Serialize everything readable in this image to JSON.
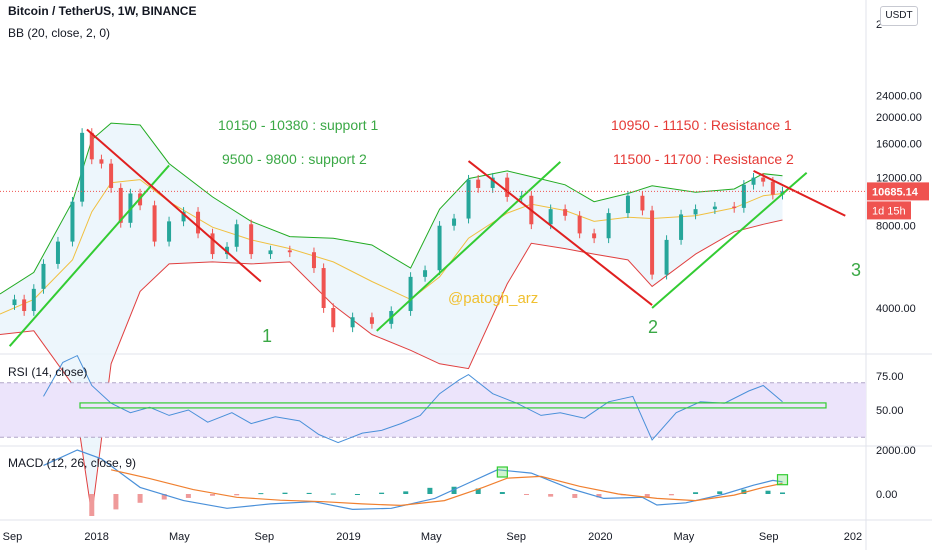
{
  "header": {
    "title": "Bitcoin / TetherUS, 1W, BINANCE",
    "indicator": "BB (20, close, 2, 0)",
    "currency_button": "USDT"
  },
  "colors": {
    "up": "#26a69a",
    "down": "#ef5350",
    "bb_upper": "#22ab22",
    "bb_lower": "#e04040",
    "bb_basis": "#f0c040",
    "bb_fill": "#e8f4fb",
    "trend_green": "#33cc33",
    "trend_red": "#e02020",
    "rsi_line": "#4a90d9",
    "rsi_band": "#ece4fb",
    "macd_line": "#4a90d9",
    "signal_line": "#f08030",
    "price_label": "#ef5350",
    "text_green": "#3aa845",
    "text_red": "#e53935"
  },
  "annotations": {
    "support_1": "10150 - 10380 : support 1",
    "support_2": "9500 - 9800   : support 2",
    "resistance_1": "10950 - 11150 : Resistance 1",
    "resistance_2": "11500 - 11700 : Resistance 2",
    "watermark": "@patogh_arz",
    "wave_1": "1",
    "wave_2": "2",
    "wave_3": "3"
  },
  "price_labels": {
    "current_price": "10685.14",
    "countdown": "1d 15h"
  },
  "chart_data": [
    {
      "type": "line",
      "title": "Bitcoin / TetherUS, 1W, BINANCE",
      "y_scale": "log",
      "y_tick_labels": [
        "4000.00",
        "8000.00",
        "12000.00",
        "16000.00",
        "20000.00",
        "24000.00"
      ],
      "y_top_partial_label": "2",
      "x_tick_labels": [
        "Sep",
        "2018",
        "May",
        "Sep",
        "2019",
        "May",
        "Sep",
        "2020",
        "May",
        "Sep",
        "202"
      ],
      "x_tick_dates": [
        "2017-09-01",
        "2018-01-01",
        "2018-05-01",
        "2018-09-01",
        "2019-01-01",
        "2019-05-01",
        "2019-09-01",
        "2020-01-01",
        "2020-05-01",
        "2020-09-01",
        "2021-01-01"
      ],
      "x_range": [
        "2017-08-14",
        "2021-01-20"
      ],
      "close_series": {
        "dates": [
          "2017-08-14",
          "2017-09-04",
          "2017-09-18",
          "2017-10-02",
          "2017-10-16",
          "2017-11-06",
          "2017-11-27",
          "2017-12-11",
          "2017-12-25",
          "2018-01-08",
          "2018-01-22",
          "2018-02-05",
          "2018-02-19",
          "2018-03-05",
          "2018-03-26",
          "2018-04-16",
          "2018-05-07",
          "2018-05-28",
          "2018-06-18",
          "2018-07-09",
          "2018-07-23",
          "2018-08-13",
          "2018-09-10",
          "2018-10-08",
          "2018-11-12",
          "2018-11-26",
          "2018-12-10",
          "2019-01-07",
          "2019-02-04",
          "2019-03-04",
          "2019-04-01",
          "2019-04-22",
          "2019-05-13",
          "2019-06-03",
          "2019-06-24",
          "2019-07-08",
          "2019-07-29",
          "2019-08-19",
          "2019-09-09",
          "2019-09-23",
          "2019-10-21",
          "2019-11-11",
          "2019-12-02",
          "2019-12-23",
          "2020-01-13",
          "2020-02-10",
          "2020-03-02",
          "2020-03-16",
          "2020-04-06",
          "2020-04-27",
          "2020-05-18",
          "2020-06-15",
          "2020-07-13",
          "2020-07-27",
          "2020-08-10",
          "2020-08-24",
          "2020-09-07",
          "2020-09-21"
        ],
        "values": [
          4100,
          4300,
          3900,
          4700,
          5800,
          7000,
          9800,
          17500,
          14000,
          13500,
          11000,
          8200,
          10500,
          9500,
          7000,
          8300,
          9000,
          7500,
          6300,
          6700,
          8100,
          6300,
          6500,
          6400,
          5600,
          4000,
          3400,
          3700,
          3500,
          3900,
          5200,
          5500,
          8000,
          8500,
          11800,
          11000,
          12000,
          10200,
          10300,
          8100,
          9200,
          8700,
          7500,
          7200,
          8900,
          10300,
          9100,
          5300,
          7100,
          8800,
          9200,
          9400,
          9300,
          11300,
          12000,
          11600,
          10400,
          10685
        ]
      },
      "bollinger": {
        "name": "BB (20, close, 2, 0)",
        "upper_dates": [
          "2017-08-14",
          "2017-10-02",
          "2017-11-27",
          "2017-12-25",
          "2018-01-22",
          "2018-03-05",
          "2018-04-16",
          "2018-06-18",
          "2018-08-13",
          "2018-10-08",
          "2018-12-10",
          "2019-02-04",
          "2019-04-01",
          "2019-05-13",
          "2019-06-24",
          "2019-08-19",
          "2019-09-23",
          "2019-11-11",
          "2019-12-23",
          "2020-02-10",
          "2020-03-16",
          "2020-05-18",
          "2020-07-13",
          "2020-08-24",
          "2020-09-21"
        ],
        "upper_values": [
          4500,
          5400,
          9800,
          16500,
          19000,
          18700,
          13500,
          10200,
          8300,
          7300,
          7200,
          6800,
          5600,
          9200,
          11900,
          12700,
          12100,
          11300,
          9800,
          10500,
          11200,
          10600,
          10900,
          12400,
          12200
        ],
        "lower_values": [
          3200,
          3300,
          2100,
          700,
          2500,
          4600,
          5800,
          5900,
          5800,
          5900,
          4100,
          3200,
          2800,
          2500,
          2400,
          4900,
          6900,
          6600,
          6300,
          6000,
          4800,
          6300,
          7600,
          8100,
          8400
        ],
        "basis_values": [
          3800,
          4300,
          6000,
          9000,
          11500,
          11800,
          9800,
          7900,
          7100,
          6600,
          5900,
          5000,
          4300,
          5200,
          7200,
          8900,
          9600,
          9100,
          8300,
          8600,
          8500,
          8700,
          9300,
          10300,
          10500
        ]
      },
      "trendlines": [
        {
          "color": "green",
          "from": [
            "2017-08-28",
            2900
          ],
          "to": [
            "2018-04-16",
            13300
          ]
        },
        {
          "color": "red",
          "from": [
            "2017-12-18",
            18000
          ],
          "to": [
            "2018-08-27",
            5000
          ]
        },
        {
          "color": "green",
          "from": [
            "2019-02-11",
            3300
          ],
          "to": [
            "2019-11-04",
            13700
          ]
        },
        {
          "color": "red",
          "from": [
            "2019-06-24",
            13800
          ],
          "to": [
            "2020-03-16",
            4100
          ]
        },
        {
          "color": "green",
          "from": [
            "2020-03-16",
            4000
          ],
          "to": [
            "2020-10-26",
            12500
          ]
        },
        {
          "color": "red",
          "from": [
            "2020-08-10",
            12700
          ],
          "to": [
            "2020-12-21",
            8700
          ]
        }
      ],
      "current_price": 10685.14
    },
    {
      "type": "line",
      "title": "RSI (14, close)",
      "y_tick_labels": [
        "50.00",
        "75.00"
      ],
      "bands": [
        30,
        70
      ],
      "horizontal_line": 53,
      "series": [
        {
          "dates": [
            "2017-10-16",
            "2017-11-13",
            "2017-12-04",
            "2017-12-25",
            "2018-01-22",
            "2018-02-19",
            "2018-03-19",
            "2018-04-16",
            "2018-05-14",
            "2018-06-11",
            "2018-07-16",
            "2018-08-13",
            "2018-09-17",
            "2018-10-22",
            "2018-11-19",
            "2018-12-17",
            "2019-01-21",
            "2019-02-18",
            "2019-03-18",
            "2019-04-15",
            "2019-05-13",
            "2019-06-10",
            "2019-06-24",
            "2019-07-29",
            "2019-09-02",
            "2019-10-07",
            "2019-11-04",
            "2019-12-09",
            "2020-01-13",
            "2020-02-17",
            "2020-03-16",
            "2020-04-20",
            "2020-05-25",
            "2020-06-29",
            "2020-08-03",
            "2020-08-24",
            "2020-09-21"
          ],
          "values": [
            60,
            85,
            90,
            68,
            55,
            48,
            52,
            46,
            50,
            41,
            48,
            40,
            45,
            42,
            32,
            26,
            33,
            35,
            40,
            46,
            62,
            72,
            76,
            62,
            55,
            46,
            48,
            44,
            56,
            60,
            28,
            48,
            56,
            55,
            64,
            68,
            56
          ]
        }
      ]
    },
    {
      "type": "bar",
      "title": "MACD (12, 26, close, 9)",
      "y_tick_labels": [
        "0.00",
        "2000.00"
      ],
      "macd": {
        "dates": [
          "2017-10-16",
          "2017-12-04",
          "2018-01-08",
          "2018-03-05",
          "2018-05-07",
          "2018-07-09",
          "2018-09-10",
          "2018-11-12",
          "2019-01-07",
          "2019-03-04",
          "2019-05-06",
          "2019-06-24",
          "2019-08-05",
          "2019-09-23",
          "2019-11-18",
          "2020-01-06",
          "2020-03-02",
          "2020-03-23",
          "2020-05-04",
          "2020-06-29",
          "2020-08-10",
          "2020-09-07",
          "2020-09-21"
        ],
        "values": [
          1300,
          2000,
          1600,
          300,
          -300,
          -650,
          -450,
          -350,
          -700,
          -650,
          -200,
          500,
          1100,
          950,
          250,
          -200,
          -150,
          -500,
          -400,
          0,
          400,
          620,
          550
        ]
      },
      "signal": {
        "dates": [
          "2018-01-22",
          "2018-03-19",
          "2018-05-21",
          "2018-07-23",
          "2018-09-24",
          "2018-11-26",
          "2019-01-21",
          "2019-03-18",
          "2019-05-20",
          "2019-07-15",
          "2019-08-19",
          "2019-10-07",
          "2019-12-02",
          "2020-01-27",
          "2020-03-23",
          "2020-05-18",
          "2020-07-13",
          "2020-08-24",
          "2020-09-21"
        ],
        "values": [
          1100,
          700,
          200,
          -150,
          -280,
          -350,
          -450,
          -520,
          -300,
          300,
          720,
          800,
          350,
          0,
          -200,
          -300,
          -50,
          300,
          480
        ]
      },
      "histogram": {
        "dates": [
          "2017-12-25",
          "2018-01-29",
          "2018-03-05",
          "2018-04-09",
          "2018-05-14",
          "2018-06-18",
          "2018-07-23",
          "2018-08-27",
          "2018-10-01",
          "2018-11-05",
          "2018-12-10",
          "2019-01-14",
          "2019-02-18",
          "2019-03-25",
          "2019-04-29",
          "2019-06-03",
          "2019-07-08",
          "2019-08-12",
          "2019-09-16",
          "2019-10-21",
          "2019-11-25",
          "2019-12-30",
          "2020-02-03",
          "2020-03-09",
          "2020-04-13",
          "2020-05-18",
          "2020-06-22",
          "2020-07-27",
          "2020-08-31",
          "2020-09-21"
        ],
        "values": [
          -1000,
          -700,
          -400,
          -250,
          -180,
          -80,
          -60,
          40,
          60,
          50,
          20,
          0,
          60,
          120,
          280,
          330,
          250,
          90,
          -40,
          -120,
          -180,
          -160,
          -60,
          -160,
          -60,
          80,
          120,
          200,
          150,
          70
        ]
      },
      "markers": [
        {
          "date": "2019-08-12",
          "value": 1000
        },
        {
          "date": "2020-09-21",
          "value": 650
        }
      ]
    }
  ]
}
